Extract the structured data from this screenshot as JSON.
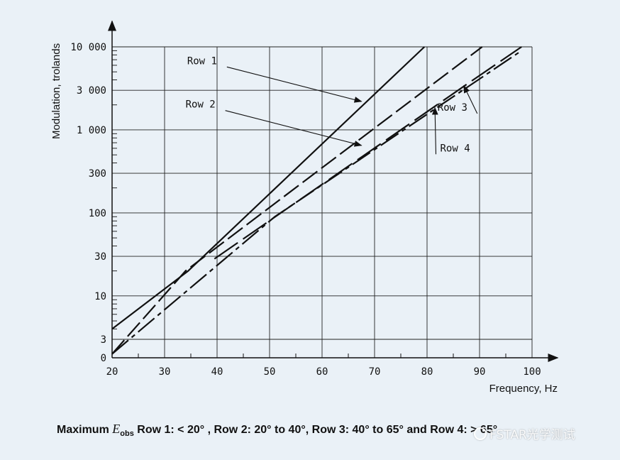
{
  "chart_data": {
    "type": "line",
    "xlabel": "Frequency, Hz",
    "ylabel": "Modulation, trolands",
    "x_ticks": [
      "20",
      "30",
      "40",
      "50",
      "60",
      "70",
      "80",
      "90",
      "100"
    ],
    "xlim": [
      20,
      100
    ],
    "y_scale": "log",
    "y_ticks": [
      "0",
      "3",
      "10",
      "30",
      "100",
      "300",
      "1 000",
      "3 000",
      "10 000"
    ],
    "grid": true,
    "series": [
      {
        "name": "Row 1",
        "line_style": "solid",
        "points": [
          [
            20,
            4
          ],
          [
            34.5,
            20
          ],
          [
            79.5,
            10000
          ]
        ]
      },
      {
        "name": "Row 2",
        "line_style": "dashed",
        "points": [
          [
            20,
            2
          ],
          [
            34,
            20
          ],
          [
            90.5,
            10000
          ]
        ]
      },
      {
        "name": "Row 3",
        "line_style": "long-dash",
        "points": [
          [
            39.5,
            28
          ],
          [
            88,
            3700
          ],
          [
            98,
            10000
          ]
        ]
      },
      {
        "name": "Row 4",
        "line_style": "dash-dot",
        "points": [
          [
            20,
            2
          ],
          [
            51,
            90
          ],
          [
            98,
            9000
          ]
        ]
      }
    ],
    "annotations": [
      {
        "text": "Row 1",
        "series": "Row 1",
        "label_at": [
          34.3,
          6200
        ],
        "arrow_to": [
          67.5,
          2200
        ]
      },
      {
        "text": "Row 2",
        "series": "Row 2",
        "label_at": [
          34.0,
          1850
        ],
        "arrow_to": [
          67.5,
          650
        ]
      },
      {
        "text": "Row 3",
        "series": "Row 3",
        "label_at": [
          82.0,
          1700
        ],
        "arrow_to": [
          87.0,
          3400
        ]
      },
      {
        "text": "Row 4",
        "series": "Row 4",
        "label_at": [
          82.5,
          550
        ],
        "arrow_to": [
          81.5,
          1850
        ]
      }
    ],
    "caption": {
      "prefix": "Maximum ",
      "symbol": "E",
      "subscript": "obs",
      "text": " Row 1: < 20° , Row 2: 20° to 40°, Row 3: 40° to 65° and Row 4: > 65°"
    }
  },
  "watermark": "FSTAR光学测试",
  "colors": {
    "background": "#eaf1f7",
    "ink": "#111111",
    "grid": "#222222"
  }
}
